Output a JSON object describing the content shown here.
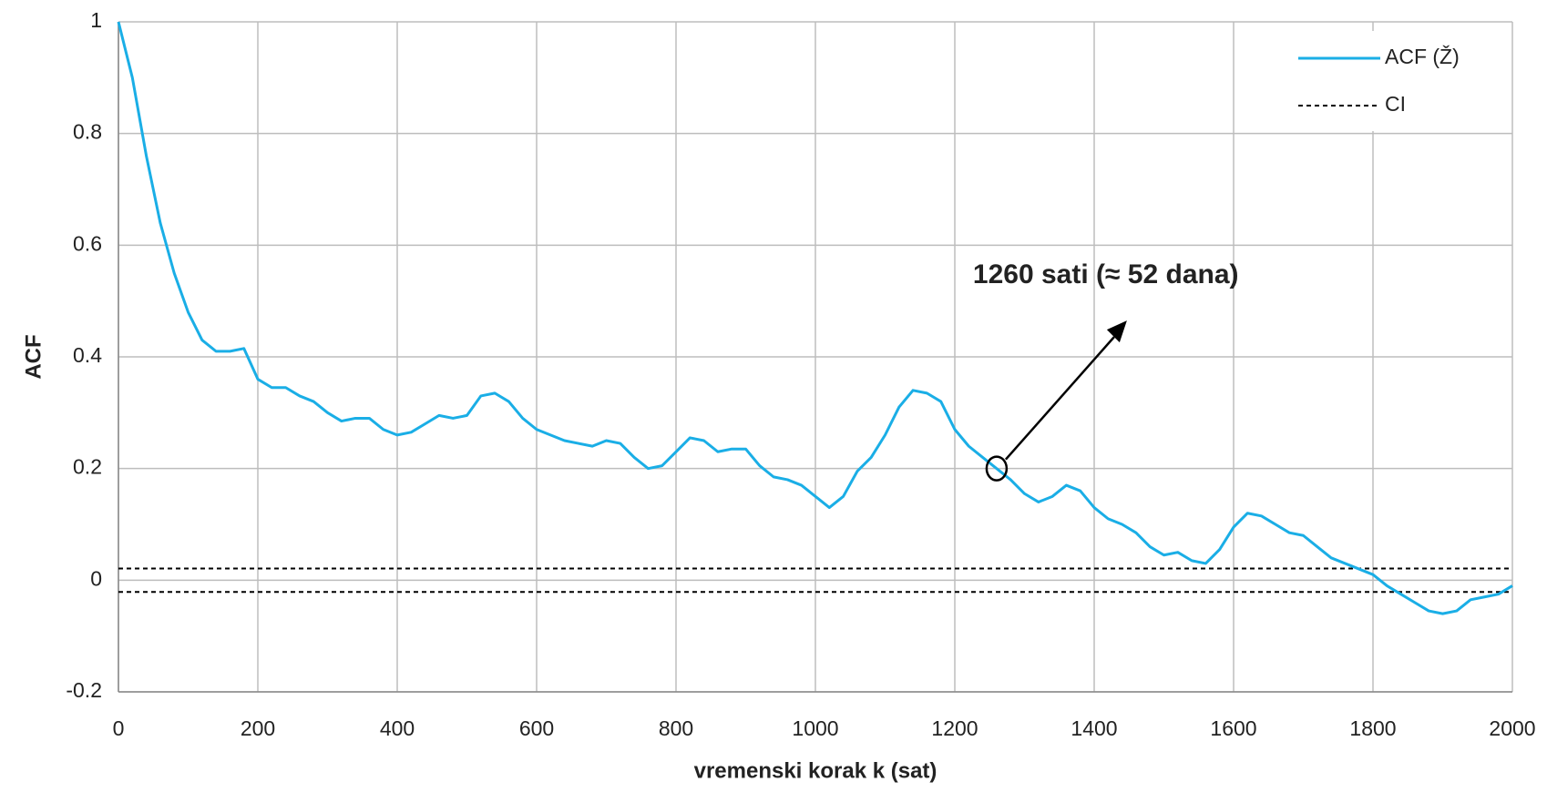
{
  "chart_data": {
    "type": "line",
    "y_label": "ACF",
    "x_label": "vremenski korak k (sat)",
    "x": [
      0,
      20,
      40,
      60,
      80,
      100,
      120,
      140,
      160,
      180,
      200,
      220,
      240,
      260,
      280,
      300,
      320,
      340,
      360,
      380,
      400,
      420,
      440,
      460,
      480,
      500,
      520,
      540,
      560,
      580,
      600,
      620,
      640,
      660,
      680,
      700,
      720,
      740,
      760,
      780,
      800,
      820,
      840,
      860,
      880,
      900,
      920,
      940,
      960,
      980,
      1000,
      1020,
      1040,
      1060,
      1080,
      1100,
      1120,
      1140,
      1160,
      1180,
      1200,
      1220,
      1240,
      1260,
      1280,
      1300,
      1320,
      1340,
      1360,
      1380,
      1400,
      1420,
      1440,
      1460,
      1480,
      1500,
      1520,
      1540,
      1560,
      1580,
      1600,
      1620,
      1640,
      1660,
      1680,
      1700,
      1720,
      1740,
      1760,
      1780,
      1800,
      1820,
      1840,
      1860,
      1880,
      1900,
      1920,
      1940,
      1960,
      1980,
      2000
    ],
    "series": [
      {
        "name": "ACF (Ž)",
        "color": "#1aaee6",
        "values": [
          1.0,
          0.9,
          0.76,
          0.64,
          0.55,
          0.48,
          0.43,
          0.41,
          0.41,
          0.415,
          0.36,
          0.345,
          0.345,
          0.33,
          0.32,
          0.3,
          0.285,
          0.29,
          0.29,
          0.27,
          0.26,
          0.265,
          0.28,
          0.295,
          0.29,
          0.295,
          0.33,
          0.335,
          0.32,
          0.29,
          0.27,
          0.26,
          0.25,
          0.245,
          0.24,
          0.25,
          0.245,
          0.22,
          0.2,
          0.205,
          0.23,
          0.255,
          0.25,
          0.23,
          0.235,
          0.235,
          0.205,
          0.185,
          0.18,
          0.17,
          0.15,
          0.13,
          0.15,
          0.195,
          0.22,
          0.26,
          0.31,
          0.34,
          0.335,
          0.32,
          0.27,
          0.24,
          0.22,
          0.2,
          0.18,
          0.155,
          0.14,
          0.15,
          0.17,
          0.16,
          0.13,
          0.11,
          0.1,
          0.085,
          0.06,
          0.045,
          0.05,
          0.035,
          0.03,
          0.055,
          0.095,
          0.12,
          0.115,
          0.1,
          0.085,
          0.08,
          0.06,
          0.04,
          0.03,
          0.02,
          0.01,
          -0.01,
          -0.025,
          -0.04,
          -0.055,
          -0.06,
          -0.055,
          -0.035,
          -0.03,
          -0.025,
          -0.01
        ]
      }
    ],
    "ci": {
      "name": "CI",
      "color": "#000000",
      "values": [
        0.021,
        -0.021
      ]
    },
    "annotation": {
      "text": "1260 sati (≈ 52 dana)",
      "x": 1260,
      "y": 0.2
    },
    "xlim": [
      0,
      2000
    ],
    "xticks": [
      0,
      200,
      400,
      600,
      800,
      1000,
      1200,
      1400,
      1600,
      1800,
      2000
    ],
    "ylim": [
      -0.2,
      1
    ],
    "yticks": [
      -0.2,
      0,
      0.2,
      0.4,
      0.6,
      0.8,
      1
    ],
    "grid": true,
    "legend": "top-right"
  }
}
